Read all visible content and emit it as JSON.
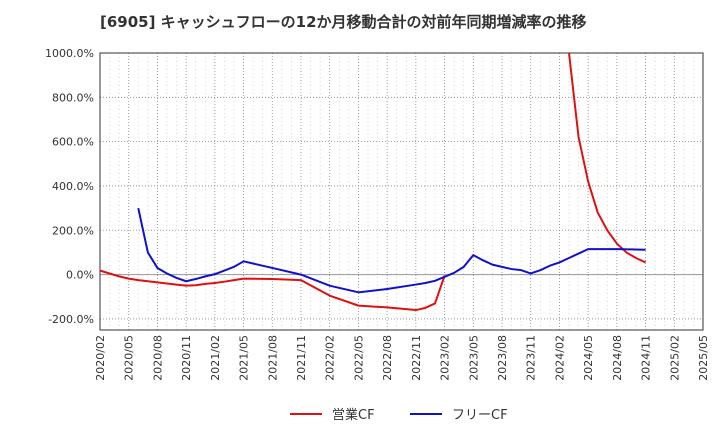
{
  "chart_data": {
    "type": "line",
    "title": "[6905]  キャッシュフローの12か月移動合計の対前年同期増減率の推移",
    "xlabel": "",
    "ylabel": "",
    "ylim": [
      -250,
      1000
    ],
    "yticks": [
      -200,
      0,
      200,
      400,
      600,
      800,
      1000
    ],
    "ytick_labels": [
      "-200.0%",
      "0.0%",
      "200.0%",
      "400.0%",
      "600.0%",
      "800.0%",
      "1000.0%"
    ],
    "x_categories": [
      "2020/02",
      "2020/05",
      "2020/08",
      "2020/11",
      "2021/02",
      "2021/05",
      "2021/08",
      "2021/11",
      "2022/02",
      "2022/05",
      "2022/08",
      "2022/11",
      "2023/02",
      "2023/05",
      "2023/08",
      "2023/11",
      "2024/02",
      "2024/05",
      "2024/08",
      "2024/11",
      "2025/02",
      "2025/05"
    ],
    "grid": true,
    "legend_position": "bottom",
    "series": [
      {
        "name": "営業CF",
        "color": "#dd1111",
        "x": [
          "2020/02",
          "2020/03",
          "2020/04",
          "2020/05",
          "2020/06",
          "2020/07",
          "2020/08",
          "2020/09",
          "2020/10",
          "2020/11",
          "2020/12",
          "2021/01",
          "2021/02",
          "2021/03",
          "2021/04",
          "2021/05",
          "2021/08",
          "2021/11",
          "2022/02",
          "2022/05",
          "2022/08",
          "2022/11",
          "2022/12",
          "2023/01",
          "2023/02",
          "2023/03",
          "2023/04",
          "2023/05",
          "2023/06",
          "2023/07",
          "2023/08",
          "2023/09",
          "2023/10",
          "2023/11",
          "2023/12",
          "2024/01",
          "2024/02",
          "2024/03",
          "2024/04",
          "2024/05",
          "2024/06",
          "2024/07",
          "2024/08",
          "2024/09",
          "2024/10",
          "2024/11"
        ],
        "values": [
          18,
          5,
          -8,
          -18,
          -25,
          -30,
          -35,
          -40,
          -45,
          -50,
          -48,
          -42,
          -38,
          -32,
          -25,
          -18,
          -20,
          -25,
          -95,
          -140,
          -148,
          -160,
          -150,
          -130,
          -5,
          null,
          null,
          null,
          null,
          null,
          null,
          null,
          null,
          null,
          null,
          null,
          null,
          1000,
          620,
          420,
          280,
          200,
          140,
          100,
          75,
          55
        ]
      },
      {
        "name": "フリーCF",
        "color": "#1111cc",
        "x": [
          "2020/06",
          "2020/07",
          "2020/08",
          "2020/09",
          "2020/10",
          "2020/11",
          "2020/12",
          "2021/01",
          "2021/02",
          "2021/03",
          "2021/04",
          "2021/05",
          "2021/08",
          "2021/11",
          "2022/02",
          "2022/05",
          "2022/08",
          "2022/11",
          "2022/12",
          "2023/01",
          "2023/02",
          "2023/03",
          "2023/04",
          "2023/05",
          "2023/06",
          "2023/07",
          "2023/08",
          "2023/09",
          "2023/10",
          "2023/11",
          "2023/12",
          "2024/01",
          "2024/02",
          "2024/03",
          "2024/04",
          "2024/05",
          "2024/08",
          "2024/11"
        ],
        "values": [
          300,
          100,
          30,
          5,
          -15,
          -30,
          -20,
          -8,
          2,
          18,
          35,
          60,
          30,
          0,
          -50,
          -80,
          -65,
          -45,
          -38,
          -28,
          -10,
          8,
          35,
          88,
          65,
          45,
          35,
          25,
          20,
          5,
          20,
          40,
          55,
          75,
          95,
          115,
          115,
          112
        ]
      }
    ]
  }
}
